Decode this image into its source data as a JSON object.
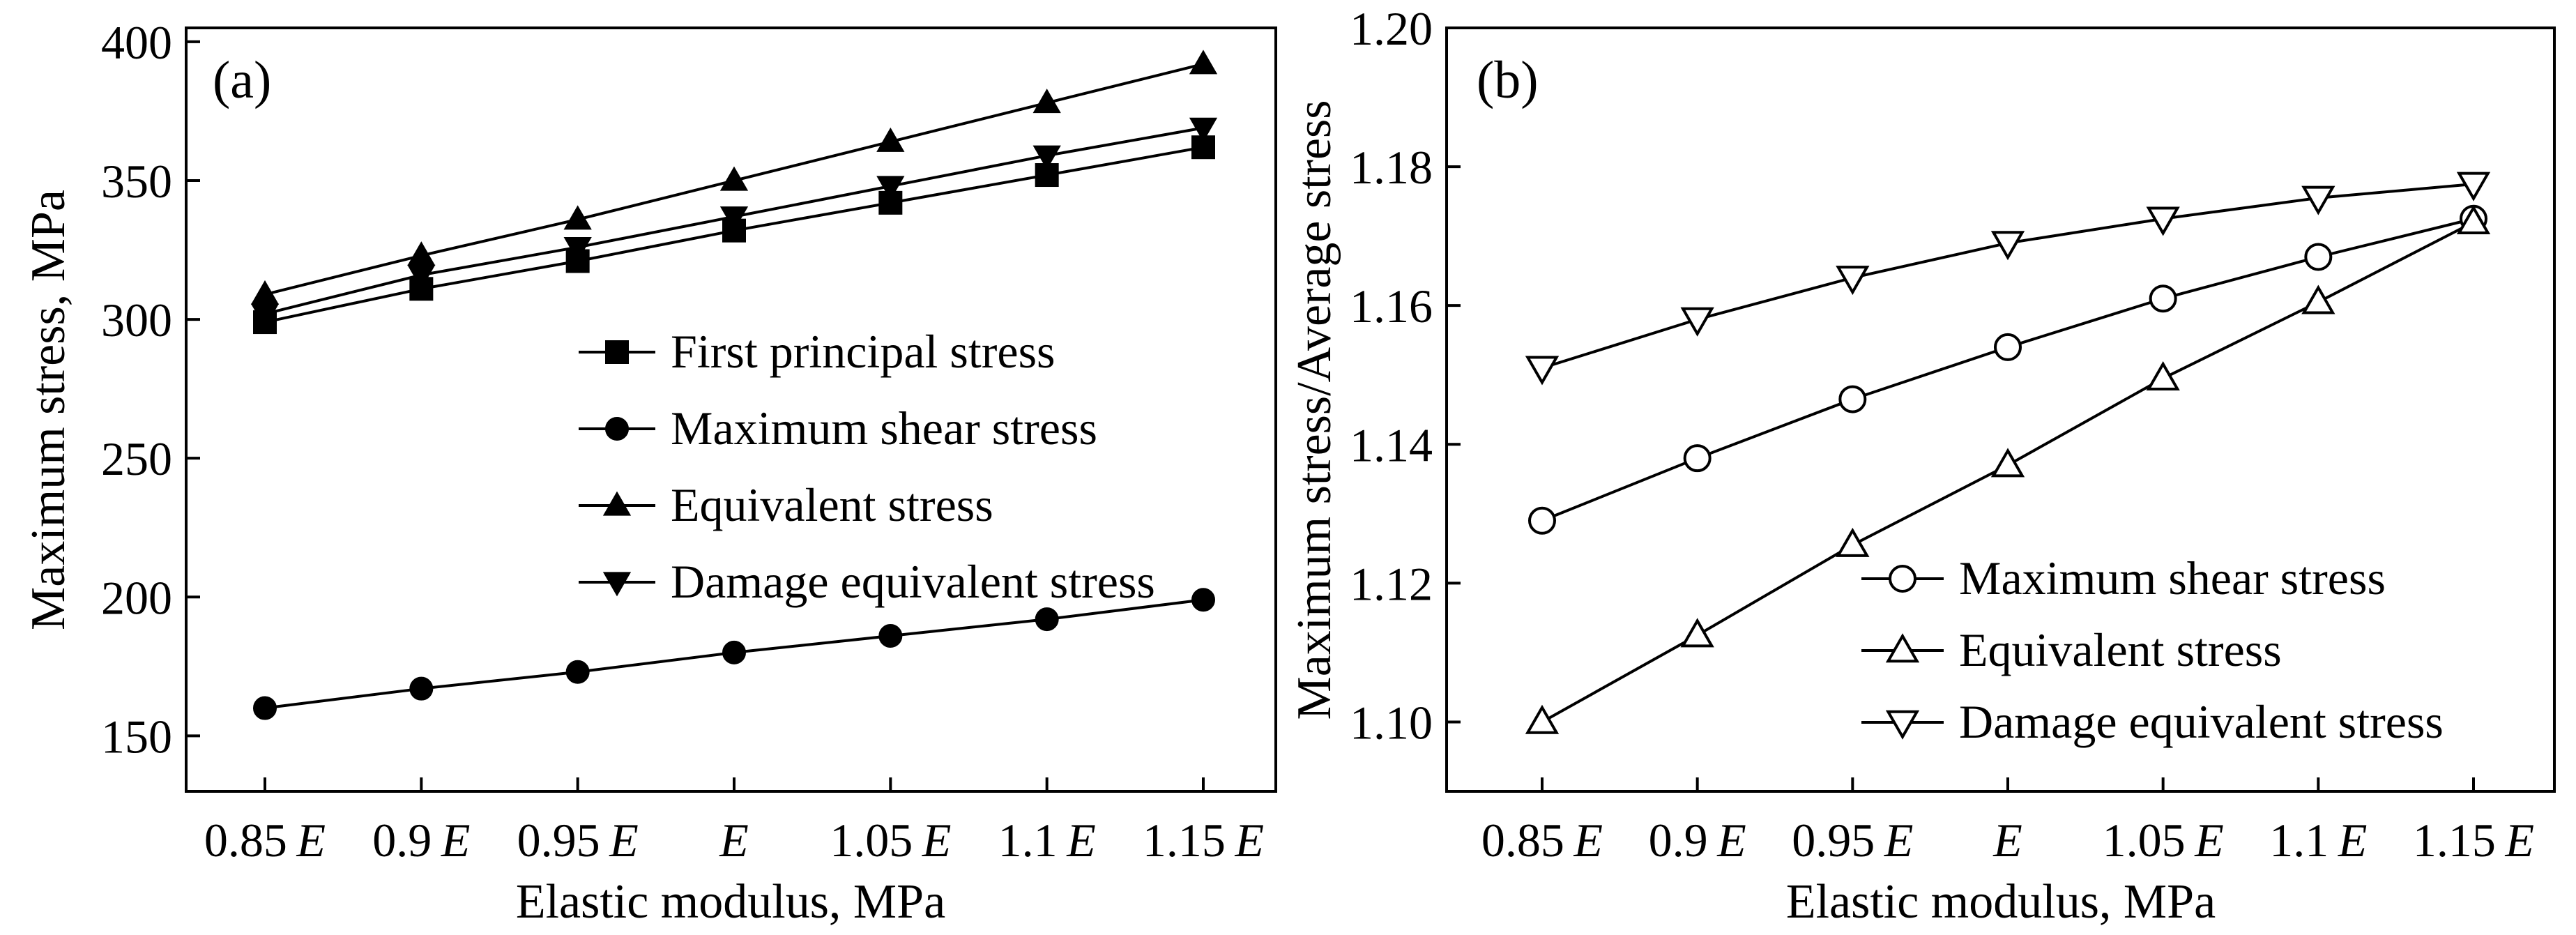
{
  "chart_data": [
    {
      "type": "line",
      "panel_label": "(a)",
      "categories": [
        "0.85",
        "0.9",
        "0.95",
        "",
        "1.05",
        "1.1",
        "1.15"
      ],
      "category_symbol": "E",
      "x_multipliers": [
        0.85,
        0.9,
        0.95,
        1.0,
        1.05,
        1.1,
        1.15
      ],
      "xlabel": "Elastic modulus, MPa",
      "ylabel": "Maximum stress, MPa",
      "ylim": [
        130,
        405
      ],
      "yticks": [
        150,
        200,
        250,
        300,
        350,
        400
      ],
      "legend_position": "middle-right",
      "series": [
        {
          "name": "First principal stress",
          "marker": "filled-square",
          "values": [
            299,
            311,
            321,
            332,
            342,
            352,
            362
          ]
        },
        {
          "name": "Maximum shear stress",
          "marker": "filled-circle",
          "values": [
            160,
            167,
            173,
            180,
            186,
            192,
            199
          ]
        },
        {
          "name": "Equivalent stress",
          "marker": "filled-triangle-up",
          "values": [
            309,
            323,
            336,
            350,
            364,
            378,
            392
          ]
        },
        {
          "name": "Damage equivalent stress",
          "marker": "filled-triangle-down",
          "values": [
            302,
            316,
            326,
            337,
            348,
            359,
            369
          ]
        }
      ]
    },
    {
      "type": "line",
      "panel_label": "(b)",
      "categories": [
        "0.85",
        "0.9",
        "0.95",
        "",
        "1.05",
        "1.1",
        "1.15"
      ],
      "category_symbol": "E",
      "x_multipliers": [
        0.85,
        0.9,
        0.95,
        1.0,
        1.05,
        1.1,
        1.15
      ],
      "xlabel": "Elastic modulus, MPa",
      "ylabel": "Maximum stress/Average stress",
      "ylim": [
        1.09,
        1.2
      ],
      "yticks": [
        "1.10",
        "1.12",
        "1.14",
        "1.16",
        "1.18",
        "1.20"
      ],
      "legend_position": "bottom-right",
      "series": [
        {
          "name": "Maximum shear stress",
          "marker": "open-circle",
          "values": [
            1.129,
            1.138,
            1.1465,
            1.154,
            1.161,
            1.167,
            1.1725
          ]
        },
        {
          "name": "Equivalent stress",
          "marker": "open-triangle-up",
          "values": [
            1.1,
            1.1125,
            1.1255,
            1.137,
            1.1495,
            1.1605,
            1.172
          ]
        },
        {
          "name": "Damage equivalent stress",
          "marker": "open-triangle-down",
          "values": [
            1.151,
            1.158,
            1.164,
            1.169,
            1.1725,
            1.1755,
            1.1775
          ]
        }
      ]
    }
  ]
}
